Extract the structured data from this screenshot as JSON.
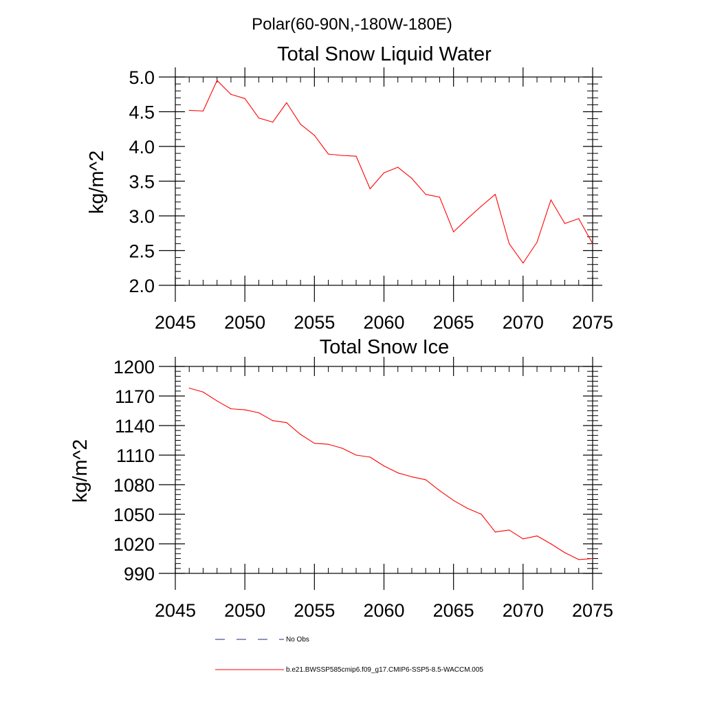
{
  "suptitle": "Polar(60-90N,-180W-180E)",
  "chart_data": [
    {
      "type": "line",
      "title": "Total Snow Liquid Water",
      "xlabel": "",
      "ylabel": "kg/m^2",
      "xlim": [
        2045,
        2075
      ],
      "ylim": [
        2.0,
        5.0
      ],
      "xticks": [
        "2045",
        "2050",
        "2055",
        "2060",
        "2065",
        "2070",
        "2075"
      ],
      "yticks": [
        "2.0",
        "2.5",
        "3.0",
        "3.5",
        "4.0",
        "4.5",
        "5.0"
      ],
      "x": [
        2046,
        2047,
        2048,
        2049,
        2050,
        2051,
        2052,
        2053,
        2054,
        2055,
        2056,
        2057,
        2058,
        2059,
        2060,
        2061,
        2062,
        2063,
        2064,
        2065,
        2066,
        2067,
        2068,
        2069,
        2070,
        2071,
        2072,
        2073,
        2074,
        2075
      ],
      "series": [
        {
          "color": "#ff0000",
          "values": [
            4.52,
            4.51,
            4.95,
            4.75,
            4.69,
            4.41,
            4.35,
            4.63,
            4.32,
            4.16,
            3.89,
            3.87,
            3.86,
            3.39,
            3.62,
            3.7,
            3.54,
            3.31,
            3.27,
            2.77,
            2.96,
            3.14,
            3.31,
            2.6,
            2.32,
            2.62,
            3.23,
            2.89,
            2.96,
            2.6
          ]
        }
      ]
    },
    {
      "type": "line",
      "title": "Total Snow Ice",
      "xlabel": "",
      "ylabel": "kg/m^2",
      "xlim": [
        2045,
        2075
      ],
      "ylim": [
        990,
        1200
      ],
      "xticks": [
        "2045",
        "2050",
        "2055",
        "2060",
        "2065",
        "2070",
        "2075"
      ],
      "yticks": [
        "990",
        "1020",
        "1050",
        "1080",
        "1110",
        "1140",
        "1170",
        "1200"
      ],
      "x": [
        2046,
        2047,
        2048,
        2049,
        2050,
        2051,
        2052,
        2053,
        2054,
        2055,
        2056,
        2057,
        2058,
        2059,
        2060,
        2061,
        2062,
        2063,
        2064,
        2065,
        2066,
        2067,
        2068,
        2069,
        2070,
        2071,
        2072,
        2073,
        2074,
        2075
      ],
      "series": [
        {
          "color": "#ff0000",
          "values": [
            1178,
            1174,
            1165,
            1157,
            1156,
            1153,
            1145,
            1143,
            1131,
            1122,
            1121,
            1117,
            1110,
            1108,
            1099,
            1092,
            1088,
            1085,
            1074,
            1064,
            1056,
            1050,
            1032,
            1034,
            1025,
            1028,
            1020,
            1011,
            1004,
            1005
          ]
        }
      ]
    }
  ],
  "legend": {
    "placement": "bottom",
    "entries": [
      {
        "label": "No Obs",
        "color": "#1e2a78",
        "dash": true
      },
      {
        "label": "b.e21.BWSSP585cmip6.f09_g17.CMIP6-SSP5-8.5-WACCM.005",
        "color": "#ff0000",
        "dash": false
      }
    ]
  }
}
